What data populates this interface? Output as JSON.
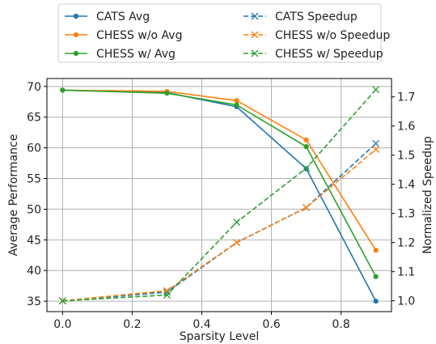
{
  "chart_data": {
    "type": "line",
    "xlabel": "Sparsity Level",
    "ylabel": "Average Performance",
    "y2label": "Normalized Speedup",
    "xlim": [
      -0.045,
      0.945
    ],
    "ylim": [
      33.3,
      71.3
    ],
    "y2lim": [
      0.963,
      1.763
    ],
    "grid": true,
    "legend_placement": "top-center",
    "x": [
      0.0,
      0.3,
      0.5,
      0.7,
      0.9
    ],
    "x_ticks": [
      "0.0",
      "0.2",
      "0.4",
      "0.6",
      "0.8"
    ],
    "x_tick_values": [
      0.0,
      0.2,
      0.4,
      0.6,
      0.8
    ],
    "y_ticks": [
      "35",
      "40",
      "45",
      "50",
      "55",
      "60",
      "65",
      "70"
    ],
    "y_tick_values": [
      35,
      40,
      45,
      50,
      55,
      60,
      65,
      70
    ],
    "y2_ticks": [
      "1.0",
      "1.1",
      "1.2",
      "1.3",
      "1.4",
      "1.5",
      "1.6",
      "1.7"
    ],
    "y2_tick_values": [
      1.0,
      1.1,
      1.2,
      1.3,
      1.4,
      1.5,
      1.6,
      1.7
    ],
    "series": [
      {
        "name": "CATS Avg",
        "axis": "left",
        "style": "solid",
        "marker": "dot",
        "color": "#1f77b4",
        "values": [
          69.4,
          69.0,
          66.7,
          56.6,
          35.0
        ]
      },
      {
        "name": "CHESS w/o Avg",
        "axis": "left",
        "style": "solid",
        "marker": "dot",
        "color": "#ff7f0e",
        "values": [
          69.4,
          69.2,
          67.7,
          61.3,
          43.3
        ]
      },
      {
        "name": "CHESS w/ Avg",
        "axis": "left",
        "style": "solid",
        "marker": "dot",
        "color": "#2ca02c",
        "values": [
          69.4,
          68.9,
          67.0,
          60.2,
          39.0
        ]
      },
      {
        "name": "CATS Speedup",
        "axis": "right",
        "style": "dashed",
        "marker": "x",
        "color": "#1f77b4",
        "values": [
          1.0,
          1.03,
          1.2,
          1.32,
          1.54
        ]
      },
      {
        "name": "CHESS w/o Speedup",
        "axis": "right",
        "style": "dashed",
        "marker": "x",
        "color": "#ff7f0e",
        "values": [
          1.0,
          1.035,
          1.2,
          1.32,
          1.52
        ]
      },
      {
        "name": "CHESS w/ Speedup",
        "axis": "right",
        "style": "dashed",
        "marker": "x",
        "color": "#2ca02c",
        "values": [
          1.0,
          1.02,
          1.27,
          1.455,
          1.725
        ]
      }
    ]
  }
}
